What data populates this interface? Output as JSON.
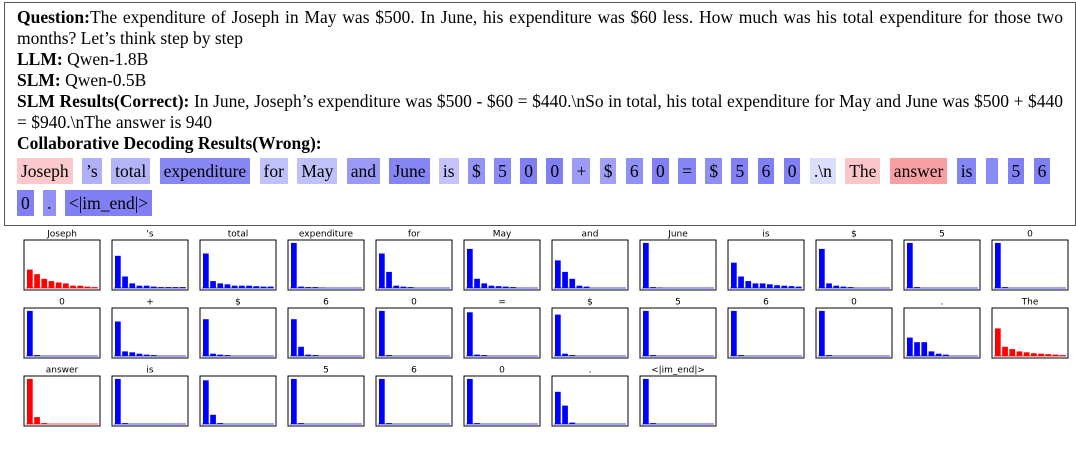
{
  "question": {
    "label": "Question:",
    "text": "The expenditure of Joseph in May was $500. In June, his expenditure was $60 less. How much was his total expenditure for those two months? Let’s think step by step"
  },
  "llm": {
    "label": "LLM:",
    "text": "Qwen-1.8B"
  },
  "slm": {
    "label": "SLM:",
    "text": "Qwen-0.5B"
  },
  "slm_results": {
    "label": "SLM Results(Correct):",
    "text": "In June, Joseph’s expenditure was $500 - $60 = $440.\\nSo in total, his total expenditure for May and June was $500 + $440 = $940.\\nThe answer is 940"
  },
  "collab_results": {
    "label": "Collaborative Decoding Results(Wrong):"
  },
  "tokens": [
    {
      "text": "Joseph",
      "color": "#fbc9cc"
    },
    {
      "text": "’s",
      "color": "#b0b0f8"
    },
    {
      "text": "total",
      "color": "#b3b3f8"
    },
    {
      "text": "expenditure",
      "color": "#8888f5"
    },
    {
      "text": "for",
      "color": "#c0c0fa"
    },
    {
      "text": "May",
      "color": "#c0c0fa"
    },
    {
      "text": "and",
      "color": "#9a9af6"
    },
    {
      "text": "June",
      "color": "#8585f4"
    },
    {
      "text": "is",
      "color": "#c4c4fa"
    },
    {
      "text": "$",
      "color": "#9494f6"
    },
    {
      "text": "5",
      "color": "#8a8af5"
    },
    {
      "text": "0",
      "color": "#8080f4"
    },
    {
      "text": "0",
      "color": "#8080f4"
    },
    {
      "text": "+",
      "color": "#9c9cf7"
    },
    {
      "text": "$",
      "color": "#a0a0f7"
    },
    {
      "text": "6",
      "color": "#9090f6"
    },
    {
      "text": "0",
      "color": "#8080f4"
    },
    {
      "text": "=",
      "color": "#8585f4"
    },
    {
      "text": "$",
      "color": "#8e8ef5"
    },
    {
      "text": "5",
      "color": "#8080f4"
    },
    {
      "text": "6",
      "color": "#8080f4"
    },
    {
      "text": "0",
      "color": "#8080f4"
    },
    {
      "text": ".\\n",
      "color": "#dcdcfd"
    },
    {
      "text": "The",
      "color": "#fbc6c9"
    },
    {
      "text": "answer",
      "color": "#f7a0a4"
    },
    {
      "text": "is",
      "color": "#8585f4"
    },
    {
      "text": " ",
      "color": "#8a8af5"
    },
    {
      "text": "5",
      "color": "#8080f4"
    },
    {
      "text": "6",
      "color": "#8080f4"
    },
    {
      "text": "0",
      "color": "#8080f4"
    },
    {
      "text": ".",
      "color": "#9090f6"
    },
    {
      "text": "<|im_end|>",
      "color": "#8080f4"
    }
  ],
  "ylim": [
    0,
    1
  ],
  "charts": [
    {
      "label": "Joseph",
      "color": "#ff0000",
      "values": [
        0.4,
        0.3,
        0.2,
        0.15,
        0.12,
        0.1,
        0.05,
        0.05,
        0.03,
        0.02
      ]
    },
    {
      "label": "'s",
      "color": "#0000ff",
      "values": [
        0.7,
        0.25,
        0.1,
        0.05,
        0.05,
        0.03,
        0.02,
        0.02,
        0.02,
        0.02
      ]
    },
    {
      "label": "total",
      "color": "#0000ff",
      "values": [
        0.75,
        0.15,
        0.1,
        0.08,
        0.05,
        0.05,
        0.05,
        0.04,
        0.03,
        0.03
      ]
    },
    {
      "label": "expenditure",
      "color": "#0000ff",
      "values": [
        0.98,
        0.03,
        0.02,
        0.02,
        0.01
      ]
    },
    {
      "label": "for",
      "color": "#0000ff",
      "values": [
        0.75,
        0.35,
        0.05,
        0.03,
        0.02
      ]
    },
    {
      "label": "May",
      "color": "#0000ff",
      "values": [
        0.85,
        0.2,
        0.1,
        0.05,
        0.04,
        0.03,
        0.02
      ]
    },
    {
      "label": "and",
      "color": "#0000ff",
      "values": [
        0.6,
        0.35,
        0.2,
        0.05,
        0.03
      ]
    },
    {
      "label": "June",
      "color": "#0000ff",
      "values": [
        0.98,
        0.02,
        0.01
      ]
    },
    {
      "label": "is",
      "color": "#0000ff",
      "values": [
        0.55,
        0.25,
        0.15,
        0.1,
        0.1,
        0.08,
        0.06,
        0.05,
        0.04,
        0.03
      ]
    },
    {
      "label": "$",
      "color": "#0000ff",
      "values": [
        0.85,
        0.1,
        0.05,
        0.03,
        0.02
      ]
    },
    {
      "label": "5",
      "color": "#0000ff",
      "values": [
        0.98,
        0.02
      ]
    },
    {
      "label": "0",
      "color": "#0000ff",
      "values": [
        0.98,
        0.02
      ]
    },
    {
      "label": "0",
      "color": "#0000ff",
      "values": [
        0.98,
        0.02
      ]
    },
    {
      "label": "+",
      "color": "#0000ff",
      "values": [
        0.75,
        0.1,
        0.08,
        0.05,
        0.03,
        0.02
      ]
    },
    {
      "label": "$",
      "color": "#0000ff",
      "values": [
        0.8,
        0.05,
        0.03,
        0.02
      ]
    },
    {
      "label": "6",
      "color": "#0000ff",
      "values": [
        0.8,
        0.2,
        0.03,
        0.02
      ]
    },
    {
      "label": "0",
      "color": "#0000ff",
      "values": [
        0.98,
        0.02
      ]
    },
    {
      "label": "=",
      "color": "#0000ff",
      "values": [
        0.95,
        0.03,
        0.02
      ]
    },
    {
      "label": "$",
      "color": "#0000ff",
      "values": [
        0.9,
        0.05,
        0.02
      ]
    },
    {
      "label": "5",
      "color": "#0000ff",
      "values": [
        0.98,
        0.02
      ]
    },
    {
      "label": "6",
      "color": "#0000ff",
      "values": [
        0.98,
        0.02
      ]
    },
    {
      "label": "0",
      "color": "#0000ff",
      "values": [
        0.98,
        0.02
      ]
    },
    {
      "label": ".",
      "color": "#0000ff",
      "values": [
        0.4,
        0.3,
        0.3,
        0.1,
        0.05,
        0.03
      ]
    },
    {
      "label": "The",
      "color": "#ff0000",
      "values": [
        0.6,
        0.2,
        0.15,
        0.1,
        0.08,
        0.06,
        0.05,
        0.04,
        0.03,
        0.02
      ]
    },
    {
      "label": "answer",
      "color": "#ff0000",
      "values": [
        0.98,
        0.15,
        0.02
      ]
    },
    {
      "label": "is",
      "color": "#0000ff",
      "values": [
        0.98,
        0.02
      ]
    },
    {
      "label": " ",
      "color": "#0000ff",
      "values": [
        0.95,
        0.2,
        0.02
      ]
    },
    {
      "label": "5",
      "color": "#0000ff",
      "values": [
        0.98,
        0.02
      ]
    },
    {
      "label": "6",
      "color": "#0000ff",
      "values": [
        0.98,
        0.02
      ]
    },
    {
      "label": "0",
      "color": "#0000ff",
      "values": [
        0.98,
        0.02
      ]
    },
    {
      "label": ".",
      "color": "#0000ff",
      "values": [
        0.7,
        0.4,
        0.03
      ]
    },
    {
      "label": "<|im_end|>",
      "color": "#0000ff",
      "values": [
        0.98,
        0.02
      ]
    }
  ]
}
